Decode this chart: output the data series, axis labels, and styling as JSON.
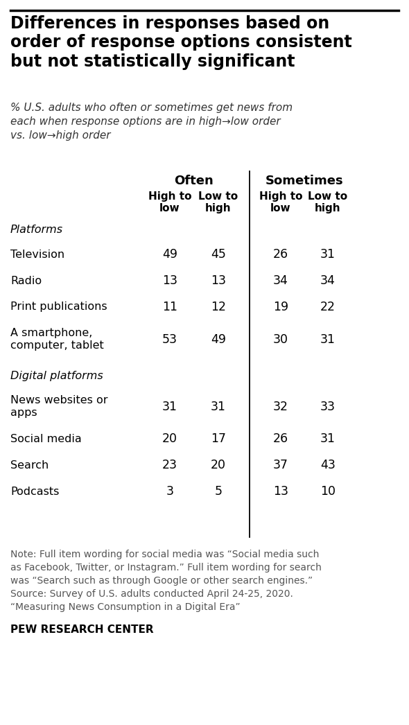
{
  "title": "Differences in responses based on\norder of response options consistent\nbut not statistically significant",
  "subtitle": "% U.S. adults who often or sometimes get news from\neach when response options are in high→low order\nvs. low→high order",
  "col_headers_top": [
    "Often",
    "Sometimes"
  ],
  "col_headers_sub": [
    "High to\nlow",
    "Low to\nhigh",
    "High to\nlow",
    "Low to\nhigh"
  ],
  "section1_label": "Platforms",
  "section2_label": "Digital platforms",
  "rows": [
    {
      "label": "Television",
      "values": [
        49,
        45,
        26,
        31
      ]
    },
    {
      "label": "Radio",
      "values": [
        13,
        13,
        34,
        34
      ]
    },
    {
      "label": "Print publications",
      "values": [
        11,
        12,
        19,
        22
      ]
    },
    {
      "label": "A smartphone,\ncomputer, tablet",
      "values": [
        53,
        49,
        30,
        31
      ]
    },
    {
      "label": "News websites or\napps",
      "values": [
        31,
        31,
        32,
        33
      ]
    },
    {
      "label": "Social media",
      "values": [
        20,
        17,
        26,
        31
      ]
    },
    {
      "label": "Search",
      "values": [
        23,
        20,
        37,
        43
      ]
    },
    {
      "label": "Podcasts",
      "values": [
        3,
        5,
        13,
        10
      ]
    }
  ],
  "section_break_after": 3,
  "note": "Note: Full item wording for social media was “Social media such as Facebook, Twitter, or Instagram.” Full item wording for search was “Search such as through Google or other search engines.” Source: Survey of U.S. adults conducted April 24-25, 2020. “Measuring News Consumption in a Digital Era”",
  "source_label": "PEW RESEARCH CENTER",
  "bg_color": "#ffffff",
  "text_color": "#000000"
}
